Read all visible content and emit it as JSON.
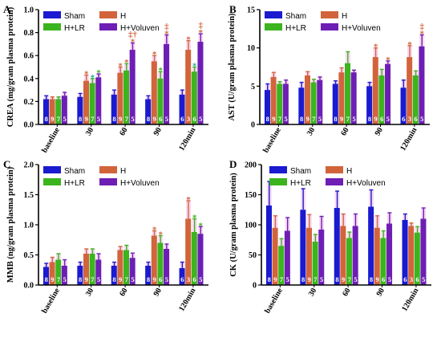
{
  "colors": {
    "Sham": "#1a1ad0",
    "H": "#d2643c",
    "H+LR": "#3cb41e",
    "H+Voluven": "#6e1eb4"
  },
  "chart_data": [
    {
      "panel_letter": "A",
      "type": "bar",
      "ylabel": "CREA (mg/gram plasma protein)",
      "ylim": [
        0.0,
        1.0
      ],
      "yticks": [
        "0.0",
        "0.2",
        "0.4",
        "0.6",
        "0.8",
        "1.0"
      ],
      "categories": [
        "baseline",
        "30",
        "60",
        "90",
        "120min"
      ],
      "legend": {
        "placement": "top-left"
      },
      "series": [
        {
          "name": "Sham",
          "values": [
            0.22,
            0.24,
            0.26,
            0.22,
            0.26
          ],
          "errors": [
            0.03,
            0.03,
            0.04,
            0.03,
            0.04
          ],
          "n": [
            "8",
            "8",
            "8",
            "8",
            "6"
          ]
        },
        {
          "name": "H",
          "values": [
            0.22,
            0.38,
            0.45,
            0.55,
            0.65
          ],
          "errors": [
            0.02,
            0.05,
            0.05,
            0.05,
            0.08
          ],
          "n": [
            "9",
            "9",
            "9",
            "9",
            "3"
          ]
        },
        {
          "name": "H+LR",
          "values": [
            0.22,
            0.36,
            0.47,
            0.4,
            0.46
          ],
          "errors": [
            0.02,
            0.04,
            0.06,
            0.06,
            0.04
          ],
          "n": [
            "7",
            "7",
            "7",
            "6",
            "6"
          ]
        },
        {
          "name": "H+Voluven",
          "values": [
            0.25,
            0.41,
            0.65,
            0.7,
            0.72
          ],
          "errors": [
            0.03,
            0.03,
            0.06,
            0.08,
            0.07
          ],
          "n": [
            "5",
            "5",
            "5",
            "5",
            "5"
          ]
        }
      ],
      "annotations": [
        {
          "group": 1,
          "series": 1,
          "text": "*",
          "color": "#d2643c"
        },
        {
          "group": 1,
          "series": 2,
          "text": "*",
          "color": "#20b0a0"
        },
        {
          "group": 1,
          "series": 3,
          "text": "*",
          "color": "#3cb41e"
        },
        {
          "group": 2,
          "series": 1,
          "text": "*",
          "color": "#d2643c"
        },
        {
          "group": 2,
          "series": 2,
          "text": "*",
          "color": "#d2643c"
        },
        {
          "group": 2,
          "series": 3,
          "text": "*",
          "color": "#d2643c"
        },
        {
          "group": 2,
          "series": 3,
          "text": "‡†",
          "color": "#d2643c",
          "level": 1
        },
        {
          "group": 3,
          "series": 1,
          "text": "*",
          "color": "#d2643c"
        },
        {
          "group": 3,
          "series": 2,
          "text": "*",
          "color": "#3cb41e"
        },
        {
          "group": 3,
          "series": 3,
          "text": "*",
          "color": "#d2643c"
        },
        {
          "group": 3,
          "series": 3,
          "text": "‡",
          "color": "#d2643c",
          "level": 1
        },
        {
          "group": 4,
          "series": 1,
          "text": "*",
          "color": "#d2643c"
        },
        {
          "group": 4,
          "series": 2,
          "text": "*",
          "color": "#20b0a0"
        },
        {
          "group": 4,
          "series": 3,
          "text": "*",
          "color": "#d2643c"
        },
        {
          "group": 4,
          "series": 3,
          "text": "‡",
          "color": "#d2643c",
          "level": 1
        }
      ]
    },
    {
      "panel_letter": "B",
      "type": "bar",
      "ylabel": "AST (U/gram plasma protein)",
      "ylim": [
        0,
        15
      ],
      "yticks": [
        "0",
        "5",
        "10",
        "15"
      ],
      "categories": [
        "baseline",
        "30",
        "60",
        "90",
        "120min"
      ],
      "legend": {
        "placement": "top-left"
      },
      "series": [
        {
          "name": "Sham",
          "values": [
            4.5,
            4.8,
            5.3,
            5.0,
            4.8
          ],
          "errors": [
            0.8,
            0.7,
            0.4,
            0.5,
            1.0
          ],
          "n": [
            "8",
            "8",
            "8",
            "8",
            "6"
          ]
        },
        {
          "name": "H",
          "values": [
            6.2,
            6.4,
            6.8,
            8.8,
            8.8
          ],
          "errors": [
            0.6,
            0.5,
            0.6,
            1.2,
            1.5
          ],
          "n": [
            "9",
            "9",
            "9",
            "9",
            "3"
          ]
        },
        {
          "name": "H+LR",
          "values": [
            5.3,
            5.5,
            8.0,
            6.4,
            6.4
          ],
          "errors": [
            0.3,
            0.4,
            1.5,
            0.8,
            0.6
          ],
          "n": [
            "7",
            "7",
            "7",
            "6",
            "6"
          ]
        },
        {
          "name": "H+Voluven",
          "values": [
            5.3,
            5.8,
            6.8,
            7.9,
            10.2
          ],
          "errors": [
            0.5,
            0.4,
            0.3,
            0.4,
            1.5
          ],
          "n": [
            "5",
            "5",
            "5",
            "5",
            "5"
          ]
        }
      ],
      "annotations": [
        {
          "group": 3,
          "series": 1,
          "text": "*",
          "color": "#d2643c"
        },
        {
          "group": 3,
          "series": 3,
          "text": "*",
          "color": "#d2643c"
        },
        {
          "group": 4,
          "series": 1,
          "text": "*",
          "color": "#d2643c"
        },
        {
          "group": 4,
          "series": 3,
          "text": "*",
          "color": "#d2643c"
        },
        {
          "group": 4,
          "series": 3,
          "text": "‡",
          "color": "#d2643c",
          "level": 1
        }
      ]
    },
    {
      "panel_letter": "C",
      "type": "bar",
      "ylabel": "MMB (ng/gram plasma protein)",
      "ylim": [
        0.0,
        2.0
      ],
      "yticks": [
        "0.0",
        "0.5",
        "1.0",
        "1.5",
        "2.0"
      ],
      "categories": [
        "baseline",
        "30",
        "60",
        "90",
        "120min"
      ],
      "legend": {
        "placement": "top-left"
      },
      "series": [
        {
          "name": "Sham",
          "values": [
            0.3,
            0.32,
            0.32,
            0.32,
            0.28
          ],
          "errors": [
            0.06,
            0.06,
            0.06,
            0.06,
            0.1
          ],
          "n": [
            "8",
            "8",
            "8",
            "8",
            "6"
          ]
        },
        {
          "name": "H",
          "values": [
            0.38,
            0.52,
            0.58,
            0.82,
            1.1
          ],
          "errors": [
            0.08,
            0.08,
            0.06,
            0.08,
            0.3
          ],
          "n": [
            "9",
            "9",
            "9",
            "9",
            "3"
          ]
        },
        {
          "name": "H+LR",
          "values": [
            0.42,
            0.52,
            0.58,
            0.7,
            0.88
          ],
          "errors": [
            0.1,
            0.08,
            0.08,
            0.12,
            0.22
          ],
          "n": [
            "7",
            "7",
            "7",
            "6",
            "6"
          ]
        },
        {
          "name": "H+Voluven",
          "values": [
            0.32,
            0.42,
            0.45,
            0.6,
            0.85
          ],
          "errors": [
            0.1,
            0.1,
            0.08,
            0.08,
            0.12
          ],
          "n": [
            "5",
            "5",
            "5",
            "5",
            "5"
          ]
        }
      ],
      "annotations": [
        {
          "group": 3,
          "series": 1,
          "text": "*",
          "color": "#d2643c"
        },
        {
          "group": 3,
          "series": 2,
          "text": "*",
          "color": "#d2643c"
        },
        {
          "group": 4,
          "series": 1,
          "text": "*",
          "color": "#d2643c"
        },
        {
          "group": 4,
          "series": 2,
          "text": "*",
          "color": "#3cb41e"
        },
        {
          "group": 4,
          "series": 3,
          "text": "*",
          "color": "#3cb41e"
        }
      ]
    },
    {
      "panel_letter": "D",
      "type": "bar",
      "ylabel": "CK (U/gram plasma protein)",
      "ylim": [
        0,
        200
      ],
      "yticks": [
        "0",
        "50",
        "100",
        "150",
        "200"
      ],
      "categories": [
        "baseline",
        "30",
        "60",
        "90",
        "120min"
      ],
      "legend": {
        "placement": "top-right"
      },
      "series": [
        {
          "name": "Sham",
          "values": [
            132,
            125,
            128,
            130,
            108
          ],
          "errors": [
            40,
            35,
            28,
            28,
            10
          ],
          "n": [
            "8",
            "8",
            "8",
            "8",
            "6"
          ]
        },
        {
          "name": "H",
          "values": [
            95,
            95,
            98,
            95,
            98
          ],
          "errors": [
            20,
            22,
            20,
            20,
            5
          ],
          "n": [
            "9",
            "9",
            "9",
            "9",
            "3"
          ]
        },
        {
          "name": "H+LR",
          "values": [
            65,
            72,
            78,
            78,
            87
          ],
          "errors": [
            12,
            12,
            10,
            12,
            10
          ],
          "n": [
            "7",
            "7",
            "7",
            "6",
            "6"
          ]
        },
        {
          "name": "H+Voluven",
          "values": [
            90,
            92,
            98,
            102,
            110
          ],
          "errors": [
            22,
            22,
            20,
            18,
            18
          ],
          "n": [
            "5",
            "5",
            "5",
            "5",
            "5"
          ]
        }
      ],
      "annotations": []
    }
  ]
}
